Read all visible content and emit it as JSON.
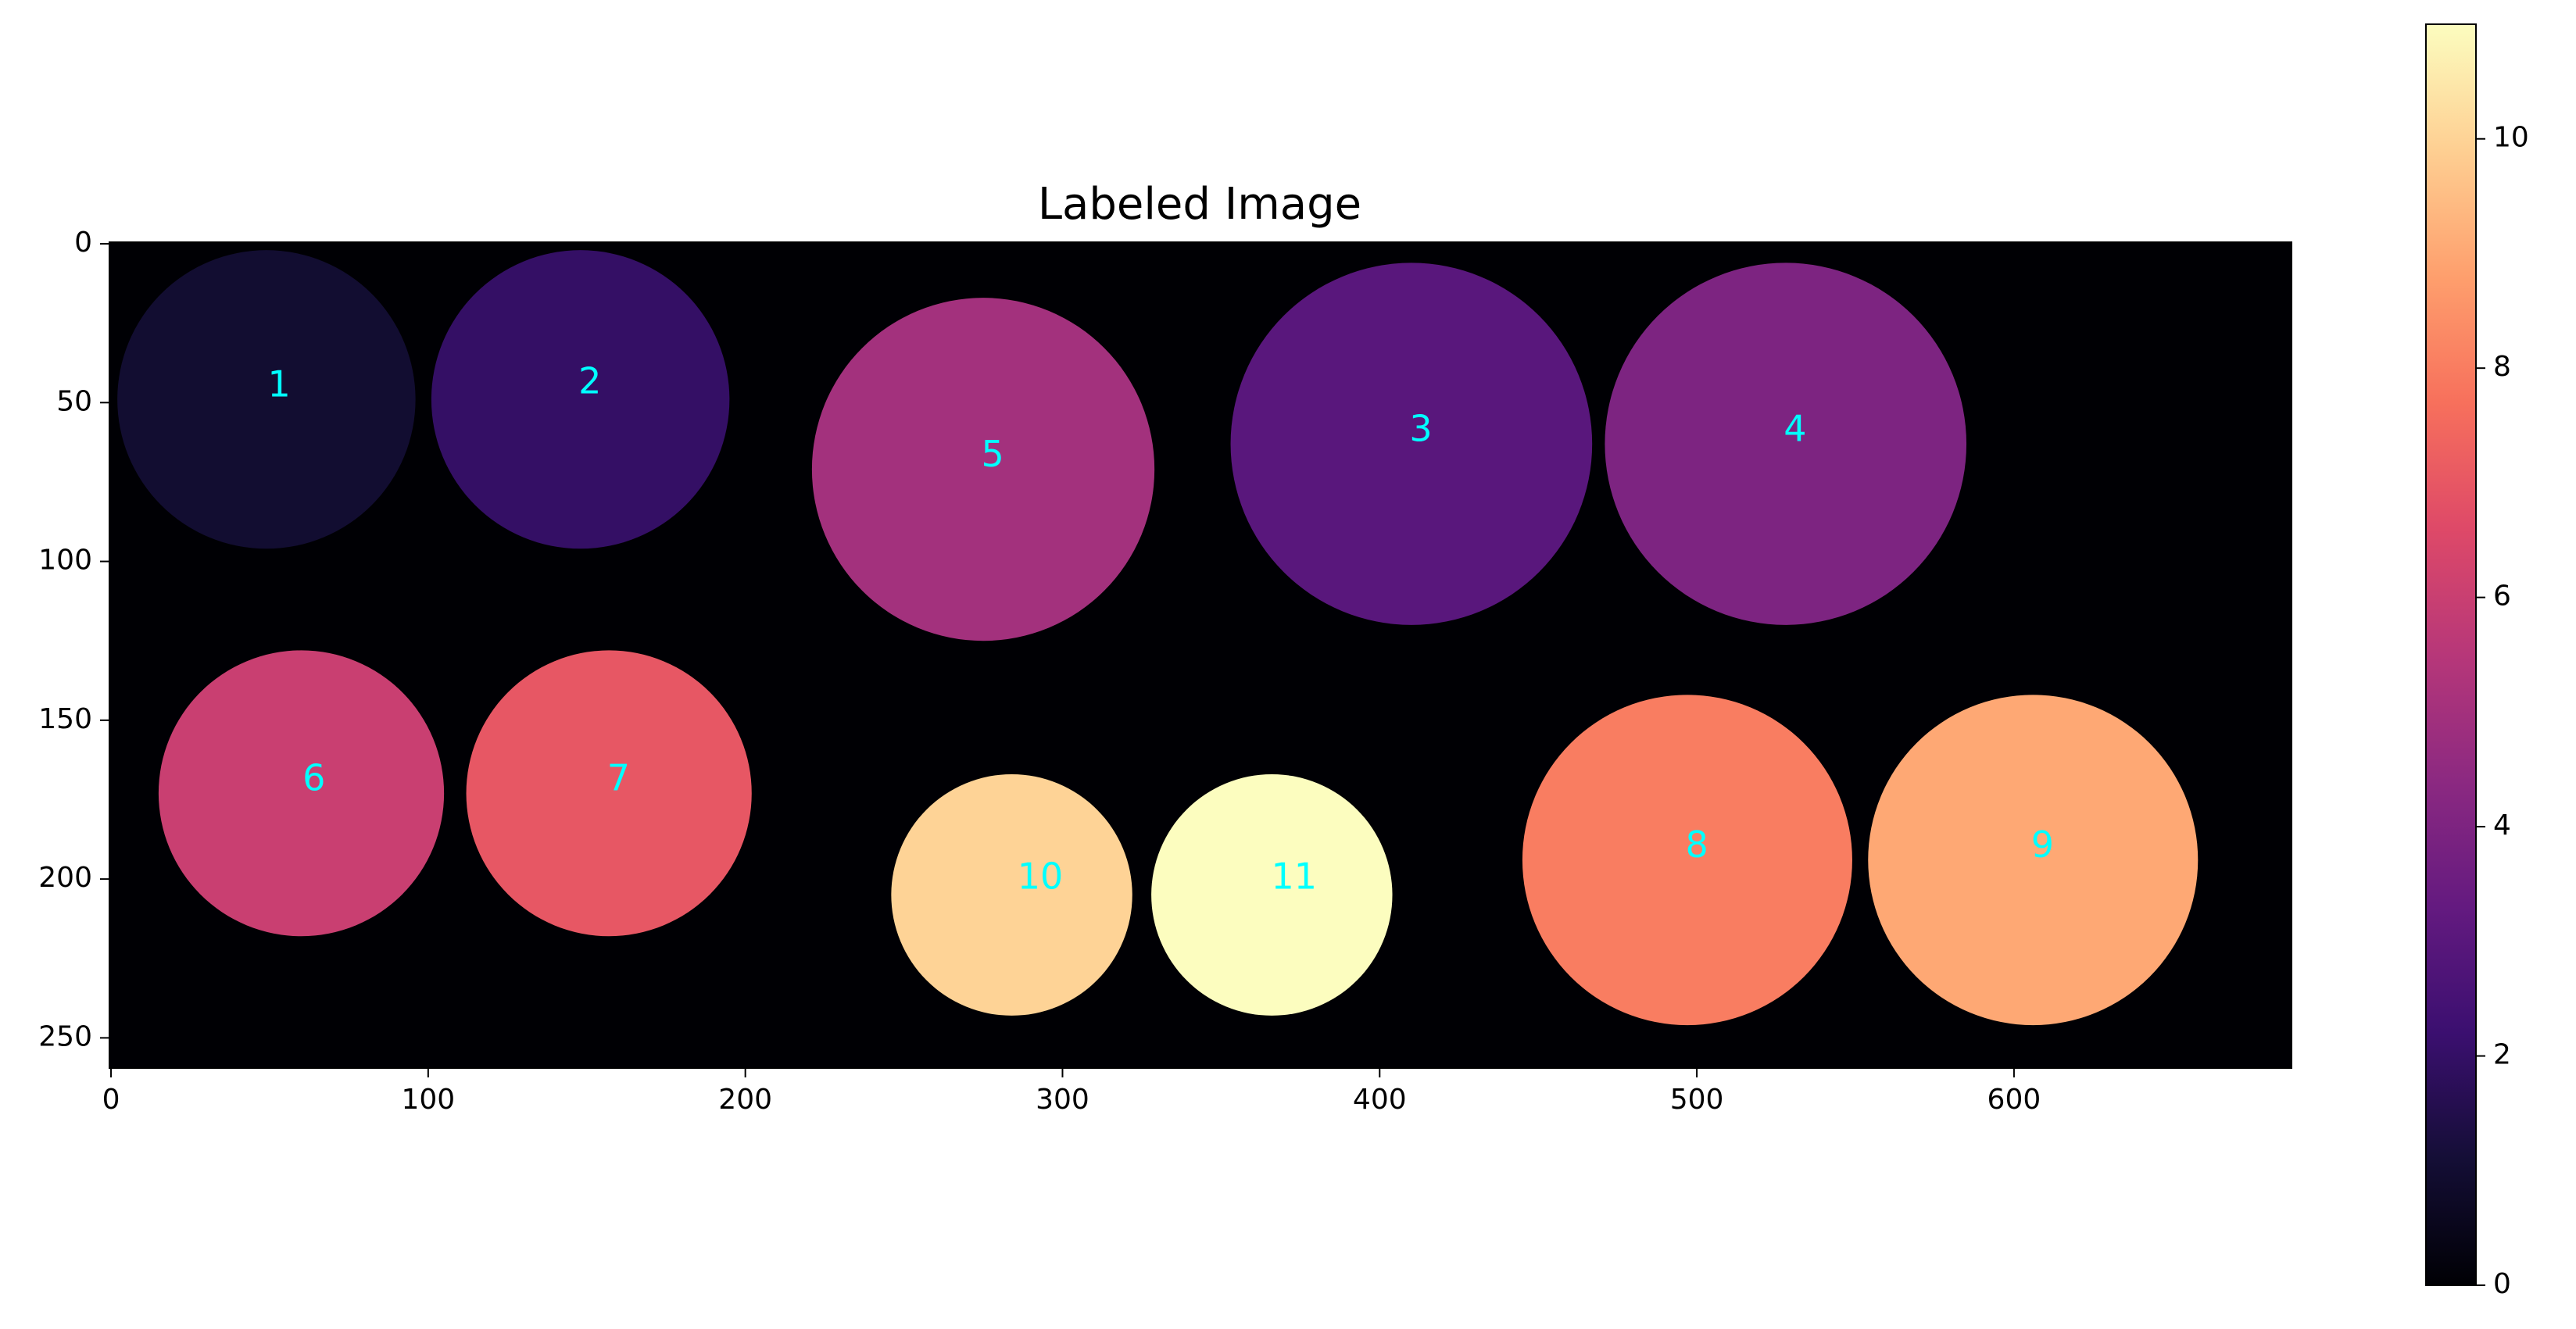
{
  "chart_data": {
    "type": "heatmap",
    "title": "Labeled Image",
    "xlabel": "",
    "ylabel": "",
    "xlim": [
      -0.5,
      687.5
    ],
    "ylim": [
      259.5,
      -0.5
    ],
    "x_ticks": [
      0,
      100,
      200,
      300,
      400,
      500,
      600
    ],
    "y_ticks": [
      0,
      50,
      100,
      150,
      200,
      250
    ],
    "grid": false,
    "background_value": 0,
    "label_color": "#00ffff",
    "colormap": "magma",
    "colorbar": {
      "range": [
        0,
        11
      ],
      "ticks": [
        0,
        2,
        4,
        6,
        8,
        10
      ]
    },
    "regions": [
      {
        "label": "1",
        "value": 1,
        "cx": 49,
        "cy": 49,
        "r": 47
      },
      {
        "label": "2",
        "value": 2,
        "cx": 148,
        "cy": 49,
        "r": 47
      },
      {
        "label": "3",
        "value": 3,
        "cx": 410,
        "cy": 63,
        "r": 57
      },
      {
        "label": "4",
        "value": 4,
        "cx": 528,
        "cy": 63,
        "r": 57
      },
      {
        "label": "5",
        "value": 5,
        "cx": 275,
        "cy": 71,
        "r": 54
      },
      {
        "label": "6",
        "value": 6,
        "cx": 60,
        "cy": 173,
        "r": 45
      },
      {
        "label": "7",
        "value": 7,
        "cx": 157,
        "cy": 173,
        "r": 45
      },
      {
        "label": "8",
        "value": 8,
        "cx": 497,
        "cy": 194,
        "r": 52
      },
      {
        "label": "9",
        "value": 9,
        "cx": 606,
        "cy": 194,
        "r": 52
      },
      {
        "label": "10",
        "value": 10,
        "cx": 284,
        "cy": 205,
        "r": 38
      },
      {
        "label": "11",
        "value": 11,
        "cx": 366,
        "cy": 205,
        "r": 38
      }
    ],
    "label_positions": [
      {
        "label": "1",
        "x": 53,
        "y": 45
      },
      {
        "label": "2",
        "x": 151,
        "y": 44
      },
      {
        "label": "3",
        "x": 413,
        "y": 59
      },
      {
        "label": "4",
        "x": 531,
        "y": 59
      },
      {
        "label": "5",
        "x": 278,
        "y": 67
      },
      {
        "label": "6",
        "x": 64,
        "y": 169
      },
      {
        "label": "7",
        "x": 160,
        "y": 169
      },
      {
        "label": "8",
        "x": 500,
        "y": 190
      },
      {
        "label": "9",
        "x": 609,
        "y": 190
      },
      {
        "label": "10",
        "x": 293,
        "y": 200
      },
      {
        "label": "11",
        "x": 373,
        "y": 200
      }
    ]
  }
}
